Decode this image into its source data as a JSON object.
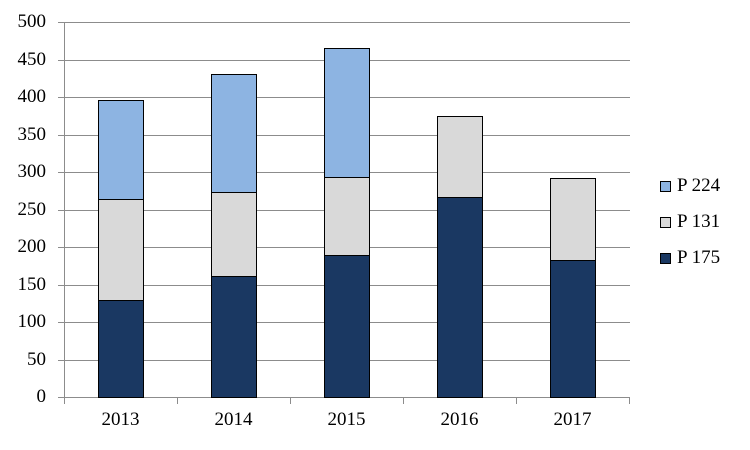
{
  "chart_data": {
    "type": "bar",
    "stacked": true,
    "title": "",
    "xlabel": "",
    "ylabel": "",
    "categories": [
      "2013",
      "2014",
      "2015",
      "2016",
      "2017"
    ],
    "series": [
      {
        "name": "P 175",
        "color": "#1A3862",
        "values": [
          130,
          161,
          190,
          267,
          183
        ]
      },
      {
        "name": "P 131",
        "color": "#D9D9D9",
        "values": [
          134,
          112,
          103,
          108,
          109
        ]
      },
      {
        "name": "P 224",
        "color": "#8DB4E2",
        "values": [
          132,
          158,
          173,
          0,
          0
        ]
      }
    ],
    "legend_position": "right",
    "legend_order_top_to_bottom": [
      "P 224",
      "P 131",
      "P 175"
    ],
    "ylim": [
      0,
      500
    ],
    "ytick_step": 50,
    "yticks": [
      "0",
      "50",
      "100",
      "150",
      "200",
      "250",
      "300",
      "350",
      "400",
      "450",
      "500"
    ],
    "grid": "horizontal"
  },
  "colors": {
    "background": "#FFFFFF",
    "gridline": "#8C8C8C",
    "axis": "#8C8C8C",
    "bar_border": "#000000",
    "text": "#000000"
  }
}
